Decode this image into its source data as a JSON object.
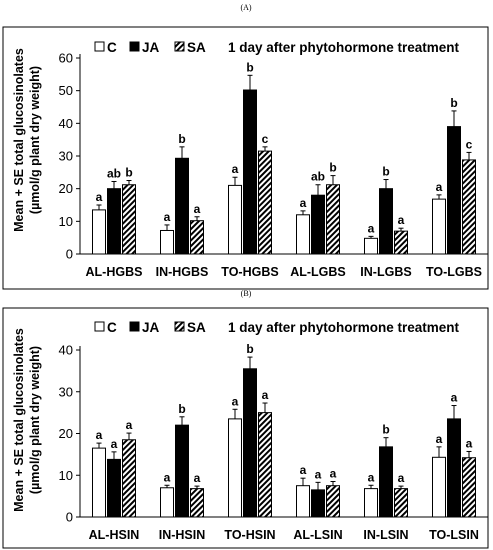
{
  "figure": {
    "panel_labels": [
      "(A)",
      "(B)"
    ],
    "ylabel_line1": "Mean + SE total glucosinolates",
    "ylabel_line2": "(µmol/g  plant dry weight)",
    "note": "1 day after phytohormone treatment",
    "legend": [
      {
        "label": "C",
        "pattern": "white"
      },
      {
        "label": "JA",
        "pattern": "black"
      },
      {
        "label": "SA",
        "pattern": "hatched"
      }
    ],
    "colors": {
      "bar_edge": "#000000",
      "fill_c": "#ffffff",
      "fill_ja": "#000000",
      "hatch": "#000000"
    }
  },
  "chart_data": [
    {
      "type": "bar",
      "panel": "(A)",
      "categories": [
        "AL-HGBS",
        "IN-HGBS",
        "TO-HGBS",
        "AL-LGBS",
        "IN-LGBS",
        "TO-LGBS"
      ],
      "ylim": [
        0,
        60
      ],
      "yticks": [
        0,
        10,
        20,
        30,
        40,
        50,
        60
      ],
      "series": [
        {
          "name": "C",
          "values": [
            13.5,
            7.2,
            21,
            12,
            4.8,
            16.8
          ],
          "errors": [
            1.5,
            1.7,
            2.5,
            1.2,
            0.6,
            1.3
          ],
          "labels": [
            "a",
            "a",
            "a",
            "a",
            "a",
            "a"
          ]
        },
        {
          "name": "JA",
          "values": [
            20,
            29.3,
            50.2,
            18,
            20,
            39
          ],
          "errors": [
            2.2,
            3.5,
            4.5,
            3.2,
            2.8,
            4.8
          ],
          "labels": [
            "ab",
            "b",
            "b",
            "ab",
            "b",
            "b"
          ]
        },
        {
          "name": "SA",
          "values": [
            21.2,
            10.2,
            31.5,
            21.2,
            7,
            28.8
          ],
          "errors": [
            1.3,
            1.2,
            1.3,
            2.8,
            0.9,
            2.3
          ],
          "labels": [
            "b",
            "a",
            "c",
            "b",
            "a",
            "c"
          ]
        }
      ]
    },
    {
      "type": "bar",
      "panel": "(B)",
      "categories": [
        "AL-HSIN",
        "IN-HSIN",
        "TO-HSIN",
        "AL-LSIN",
        "IN-LSIN",
        "TO-LSIN"
      ],
      "ylim": [
        0,
        40
      ],
      "yticks": [
        0,
        10,
        20,
        30,
        40
      ],
      "series": [
        {
          "name": "C",
          "values": [
            16.5,
            7,
            23.5,
            7.5,
            6.8,
            14.3
          ],
          "errors": [
            1.2,
            0.6,
            2.3,
            1.8,
            0.8,
            2.5
          ],
          "labels": [
            "a",
            "a",
            "a",
            "a",
            "a",
            "a"
          ]
        },
        {
          "name": "JA",
          "values": [
            13.8,
            22,
            35.5,
            6.5,
            16.8,
            23.5
          ],
          "errors": [
            1.8,
            2,
            2.8,
            1.8,
            2.2,
            3.2
          ],
          "labels": [
            "a",
            "b",
            "b",
            "a",
            "b",
            "a"
          ]
        },
        {
          "name": "SA",
          "values": [
            18.5,
            6.8,
            25,
            7.5,
            6.8,
            14.2
          ],
          "errors": [
            1.6,
            0.6,
            2.3,
            1,
            0.6,
            1.5
          ],
          "labels": [
            "a",
            "a",
            "a",
            "a",
            "a",
            "a"
          ]
        }
      ]
    }
  ]
}
